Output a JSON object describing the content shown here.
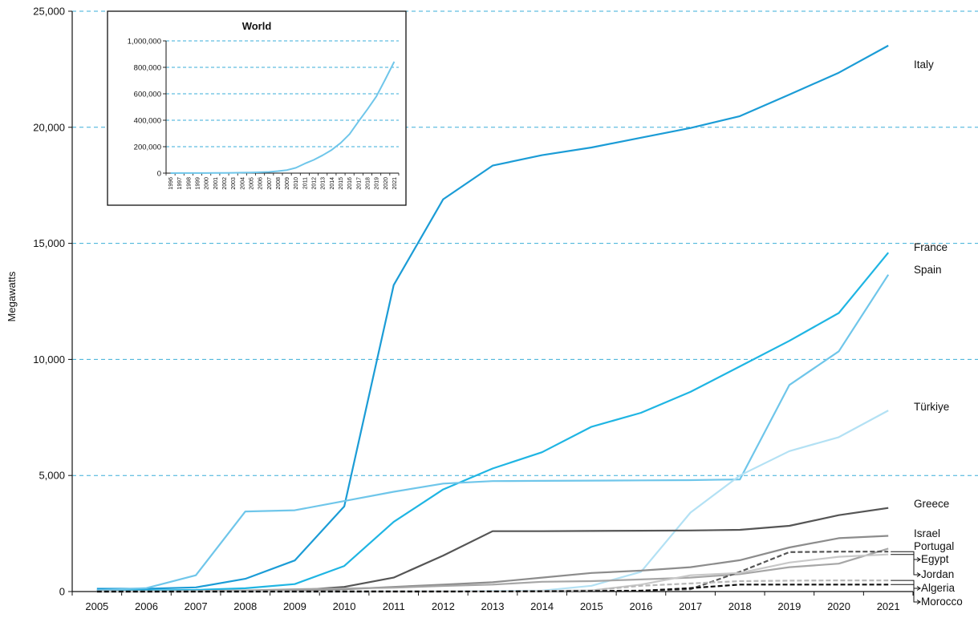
{
  "chart_data": [
    {
      "type": "line",
      "title": "",
      "xlabel": "",
      "ylabel": "Megawatts",
      "x": [
        "2005",
        "2006",
        "2007",
        "2008",
        "2009",
        "2010",
        "2011",
        "2012",
        "2013",
        "2014",
        "2015",
        "2016",
        "2017",
        "2018",
        "2019",
        "2020",
        "2021"
      ],
      "ylim": [
        0,
        25000
      ],
      "yticks": [
        0,
        5000,
        10000,
        15000,
        20000,
        25000
      ],
      "ytick_labels": [
        "0",
        "5,000",
        "10,000",
        "15,000",
        "20,000",
        "25,000"
      ],
      "grid": "horizontal dashed",
      "series": [
        {
          "name": "Italy",
          "color": "#1b9cd6",
          "dashed": false,
          "values": [
            120,
            120,
            180,
            550,
            1340,
            3670,
            13200,
            16900,
            18350,
            18800,
            19130,
            19550,
            19970,
            20480,
            21410,
            22350,
            23520
          ]
        },
        {
          "name": "France",
          "color": "#1fb5e3",
          "dashed": false,
          "values": [
            40,
            50,
            70,
            140,
            320,
            1100,
            3000,
            4400,
            5300,
            6000,
            7100,
            7700,
            8600,
            9700,
            10800,
            12000,
            14600
          ]
        },
        {
          "name": "Spain",
          "color": "#6fc6ea",
          "dashed": false,
          "values": [
            60,
            150,
            700,
            3450,
            3500,
            3900,
            4300,
            4650,
            4760,
            4770,
            4780,
            4790,
            4800,
            4830,
            8900,
            10350,
            13650
          ]
        },
        {
          "name": "Türkiye",
          "color": "#b3e1f4",
          "dashed": false,
          "values": [
            0,
            0,
            0,
            0,
            0,
            0,
            5,
            10,
            20,
            40,
            250,
            850,
            3400,
            5000,
            6050,
            6650,
            7800
          ]
        },
        {
          "name": "Greece",
          "color": "#555555",
          "dashed": false,
          "values": [
            5,
            5,
            10,
            20,
            50,
            200,
            600,
            1550,
            2600,
            2600,
            2610,
            2620,
            2630,
            2660,
            2830,
            3290,
            3600
          ]
        },
        {
          "name": "Israel",
          "color": "#8c8c8c",
          "dashed": false,
          "values": [
            0,
            0,
            5,
            20,
            50,
            100,
            200,
            300,
            400,
            600,
            800,
            900,
            1050,
            1350,
            1900,
            2300,
            2400
          ]
        },
        {
          "name": "Portugal",
          "color": "#a6a6a6",
          "dashed": false,
          "values": [
            5,
            10,
            20,
            50,
            100,
            130,
            170,
            240,
            300,
            420,
            450,
            520,
            600,
            750,
            1050,
            1200,
            1850
          ]
        },
        {
          "name": "Egypt",
          "color": "#555555",
          "dashed": true,
          "values": [
            0,
            0,
            0,
            0,
            5,
            15,
            15,
            15,
            15,
            20,
            20,
            40,
            100,
            850,
            1700,
            1720,
            1720
          ]
        },
        {
          "name": "Jordan",
          "color": "#c8c8c8",
          "dashed": false,
          "values": [
            0,
            0,
            0,
            0,
            0,
            0,
            0,
            5,
            5,
            20,
            50,
            300,
            700,
            800,
            1250,
            1500,
            1600
          ]
        },
        {
          "name": "Algeria",
          "color": "#b8b8b8",
          "dashed": true,
          "values": [
            0,
            0,
            0,
            0,
            0,
            0,
            5,
            5,
            10,
            20,
            50,
            250,
            350,
            450,
            470,
            480,
            480
          ]
        },
        {
          "name": "Morocco",
          "color": "#111111",
          "dashed": true,
          "values": [
            0,
            0,
            0,
            0,
            0,
            0,
            0,
            0,
            5,
            10,
            20,
            30,
            150,
            300,
            300,
            300,
            300
          ]
        }
      ]
    },
    {
      "type": "line",
      "title": "World",
      "xlabel": "",
      "ylabel": "",
      "x": [
        "1996",
        "1997",
        "1998",
        "1999",
        "2000",
        "2001",
        "2002",
        "2003",
        "2004",
        "2005",
        "2006",
        "2007",
        "2008",
        "2009",
        "2010",
        "2011",
        "2012",
        "2013",
        "2014",
        "2015",
        "2016",
        "2017",
        "2018",
        "2019",
        "2020",
        "2021"
      ],
      "ylim": [
        0,
        1000000
      ],
      "yticks": [
        0,
        200000,
        400000,
        600000,
        800000,
        1000000
      ],
      "ytick_labels": [
        "0",
        "200,000",
        "400,000",
        "600,000",
        "800,000",
        "1,000,000"
      ],
      "grid": "horizontal dashed",
      "series": [
        {
          "name": "",
          "color": "#6fc6ea",
          "dashed": false,
          "values": [
            300,
            400,
            500,
            700,
            800,
            1000,
            2000,
            2700,
            3700,
            5100,
            6700,
            9200,
            15000,
            23000,
            40000,
            72000,
            100000,
            135000,
            175000,
            228000,
            295000,
            390000,
            483000,
            580000,
            710000,
            843000
          ]
        }
      ]
    }
  ]
}
